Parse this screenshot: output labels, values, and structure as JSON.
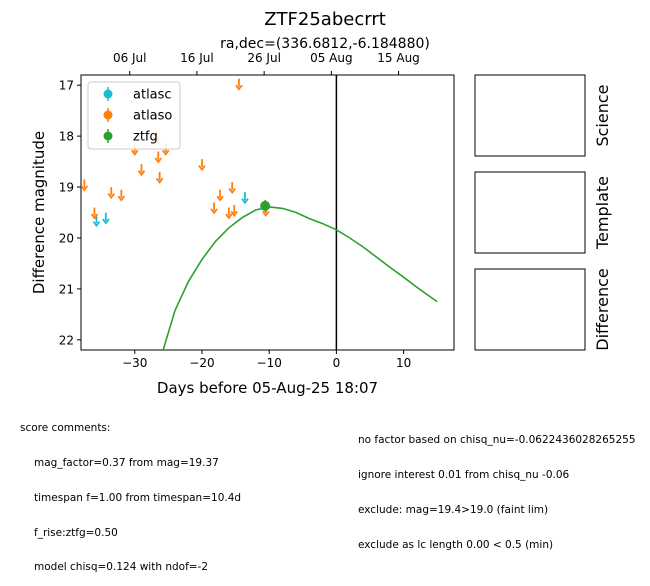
{
  "title": "ZTF25abecrrt",
  "subtitle": "ra,dec=(336.6812,-6.184880)",
  "chart_data": {
    "type": "scatter",
    "xlabel": "Days before 05-Aug-25 18:07",
    "ylabel": "Difference magnitude",
    "xlim": [
      -38,
      17.5
    ],
    "ylim": [
      22.2,
      16.8
    ],
    "y_inverted": true,
    "x_ticks": [
      -30,
      -20,
      -10,
      0,
      10
    ],
    "y_ticks": [
      17,
      18,
      19,
      20,
      21,
      22
    ],
    "top_axis_ticks": [
      {
        "label": "06 Jul",
        "x": -30.75
      },
      {
        "label": "16 Jul",
        "x": -20.75
      },
      {
        "label": "26 Jul",
        "x": -10.75
      },
      {
        "label": "05 Aug",
        "x": -0.75
      },
      {
        "label": "15 Aug",
        "x": 9.25
      }
    ],
    "vertical_line_x": 0,
    "legend_position": "upper-left",
    "colors": {
      "atlasc": "#17becf",
      "atlaso": "#ff7f0e",
      "ztfg": "#2ca02c"
    },
    "series": [
      {
        "name": "atlasc",
        "kind": "upper_limit",
        "points": [
          {
            "x": -35.7,
            "y": 19.65
          },
          {
            "x": -34.3,
            "y": 19.6
          },
          {
            "x": -13.6,
            "y": 19.2
          }
        ]
      },
      {
        "name": "atlaso",
        "kind": "upper_limit",
        "points": [
          {
            "x": -37.5,
            "y": 18.95
          },
          {
            "x": -36.0,
            "y": 19.5
          },
          {
            "x": -33.5,
            "y": 19.1
          },
          {
            "x": -32.0,
            "y": 19.15
          },
          {
            "x": -30.0,
            "y": 18.25
          },
          {
            "x": -29.0,
            "y": 18.65
          },
          {
            "x": -26.8,
            "y": 18.0
          },
          {
            "x": -26.5,
            "y": 18.4
          },
          {
            "x": -26.3,
            "y": 18.8
          },
          {
            "x": -25.4,
            "y": 18.25
          },
          {
            "x": -20.0,
            "y": 18.55
          },
          {
            "x": -18.2,
            "y": 19.4
          },
          {
            "x": -17.3,
            "y": 19.15
          },
          {
            "x": -16.0,
            "y": 19.5
          },
          {
            "x": -15.5,
            "y": 19.0
          },
          {
            "x": -15.2,
            "y": 19.45
          },
          {
            "x": -14.5,
            "y": 16.97
          },
          {
            "x": -10.5,
            "y": 19.45
          }
        ]
      },
      {
        "name": "ztfg",
        "kind": "detection",
        "points": [
          {
            "x": -10.6,
            "y": 19.37
          }
        ],
        "model_curve": [
          {
            "x": -26.0,
            "y": 22.3
          },
          {
            "x": -24.0,
            "y": 21.42
          },
          {
            "x": -22.0,
            "y": 20.85
          },
          {
            "x": -20.0,
            "y": 20.42
          },
          {
            "x": -18.0,
            "y": 20.07
          },
          {
            "x": -16.0,
            "y": 19.8
          },
          {
            "x": -14.0,
            "y": 19.6
          },
          {
            "x": -12.0,
            "y": 19.45
          },
          {
            "x": -10.0,
            "y": 19.39
          },
          {
            "x": -8.0,
            "y": 19.42
          },
          {
            "x": -6.0,
            "y": 19.5
          },
          {
            "x": -4.0,
            "y": 19.62
          },
          {
            "x": -2.0,
            "y": 19.72
          },
          {
            "x": 0.0,
            "y": 19.84
          },
          {
            "x": 2.0,
            "y": 20.0
          },
          {
            "x": 4.0,
            "y": 20.18
          },
          {
            "x": 6.0,
            "y": 20.38
          },
          {
            "x": 8.0,
            "y": 20.58
          },
          {
            "x": 10.0,
            "y": 20.77
          },
          {
            "x": 12.0,
            "y": 20.97
          },
          {
            "x": 14.0,
            "y": 21.16
          },
          {
            "x": 15.0,
            "y": 21.25
          }
        ]
      }
    ]
  },
  "cutouts": [
    {
      "label": "Science"
    },
    {
      "label": "Template"
    },
    {
      "label": "Difference"
    }
  ],
  "comments_left": {
    "heading": "score comments:",
    "lines": [
      "mag_factor=0.37 from mag=19.37",
      "timespan f=1.00 from timespan=10.4d",
      "f_rise:ztfg=0.50",
      "model chisq=0.124 with ndof=-2"
    ]
  },
  "comments_right": {
    "lines": [
      "no factor based on chisq_nu=-0.0622436028265255",
      "ignore interest 0.01 from chisq_nu -0.06",
      "exclude: mag=19.4>19.0 (faint lim)",
      "exclude as lc length 0.00 < 0.5 (min)"
    ]
  }
}
